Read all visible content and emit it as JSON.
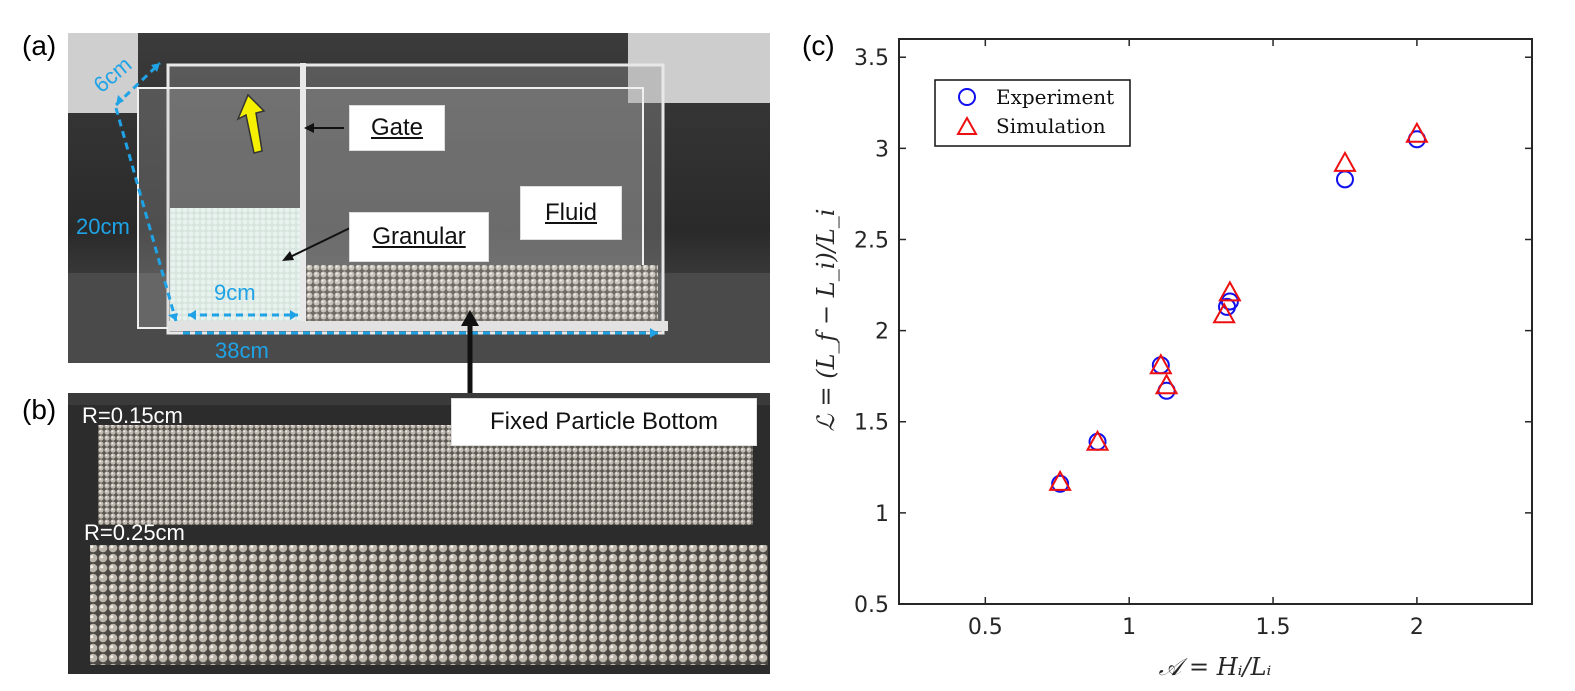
{
  "panel_labels": {
    "a": "(a)",
    "b": "(b)",
    "c": "(c)"
  },
  "photo_a": {
    "callouts": {
      "gate": "Gate",
      "granular": "Granular",
      "fluid": "Fluid",
      "bottom": "Fixed Particle Bottom"
    },
    "dimensions": {
      "depth": "6cm",
      "height": "20cm",
      "column_width": "9cm",
      "tank_length": "38cm"
    }
  },
  "photo_b": {
    "radii": {
      "small": "R=0.15cm",
      "large": "R=0.25cm"
    }
  },
  "colors": {
    "experiment": "#1010ee",
    "simulation": "#ee1010",
    "dimension": "#1fa3e6",
    "arrow": "#f5f000"
  },
  "chart_data": {
    "type": "scatter",
    "xlabel": "𝒜 = Hᵢ/Lᵢ",
    "ylabel": "ℒ = (L_f − L_i)/L_i",
    "xlim": [
      0.2,
      2.4
    ],
    "ylim": [
      0.5,
      3.6
    ],
    "xticks": [
      0.5,
      1,
      1.5,
      2
    ],
    "xtick_labels": [
      "0.5",
      "1",
      "1.5",
      "2"
    ],
    "yticks": [
      0.5,
      1,
      1.5,
      2,
      2.5,
      3,
      3.5
    ],
    "ytick_labels": [
      "0.5",
      "1",
      "1.5",
      "2",
      "2.5",
      "3",
      "3.5"
    ],
    "legend_position": "top-left",
    "grid": false,
    "series": [
      {
        "name": "Experiment",
        "marker": "circle",
        "x": [
          0.76,
          0.89,
          1.11,
          1.13,
          1.34,
          1.35,
          1.75,
          2.0
        ],
        "y": [
          1.16,
          1.39,
          1.81,
          1.67,
          2.13,
          2.16,
          2.83,
          3.05
        ]
      },
      {
        "name": "Simulation",
        "marker": "triangle",
        "x": [
          0.76,
          0.89,
          1.11,
          1.13,
          1.33,
          1.35,
          1.75,
          2.0
        ],
        "y": [
          1.17,
          1.39,
          1.81,
          1.7,
          2.09,
          2.21,
          2.92,
          3.08
        ]
      }
    ]
  }
}
